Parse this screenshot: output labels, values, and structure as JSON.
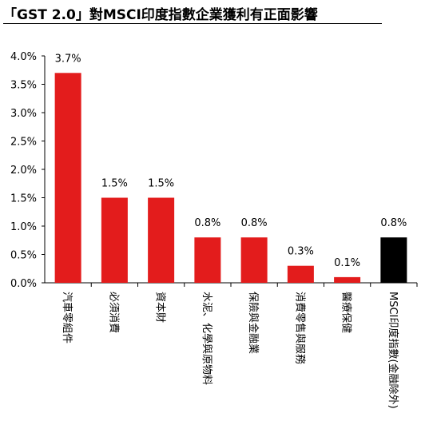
{
  "chart_data": {
    "type": "bar",
    "title": "「GST 2.0」對MSCI印度指數企業獲利有正面影響",
    "categories": [
      "汽車零組件",
      "必須消費",
      "資本財",
      "水泥、化學與原物料",
      "保險與金融業",
      "消費零售與服務",
      "醫療保健",
      "MSCI印度指數(金融除外)"
    ],
    "values": [
      3.7,
      1.5,
      1.5,
      0.8,
      0.8,
      0.3,
      0.1,
      0.8
    ],
    "data_labels": [
      "3.7%",
      "1.5%",
      "1.5%",
      "0.8%",
      "0.8%",
      "0.3%",
      "0.1%",
      "0.8%"
    ],
    "y_ticks": [
      "0.0%",
      "0.5%",
      "1.0%",
      "1.5%",
      "2.0%",
      "2.5%",
      "3.0%",
      "3.5%",
      "4.0%"
    ],
    "ylim": [
      0,
      4.0
    ],
    "xlabel": "",
    "ylabel": "",
    "grid": false,
    "bar_colors": [
      "#e31c1c",
      "#e31c1c",
      "#e31c1c",
      "#e31c1c",
      "#e31c1c",
      "#e31c1c",
      "#e31c1c",
      "#000000"
    ]
  }
}
